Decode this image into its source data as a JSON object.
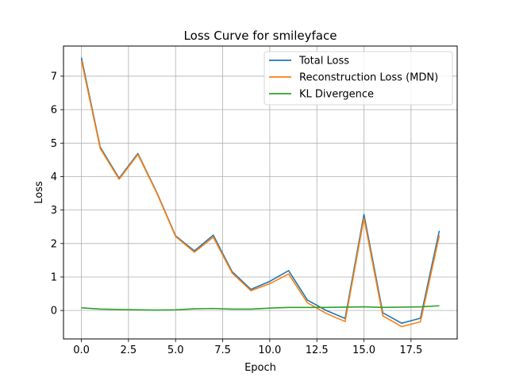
{
  "chart_data": {
    "type": "line",
    "title": "Loss Curve for smileyface",
    "xlabel": "Epoch",
    "ylabel": "Loss",
    "xlim": [
      -0.95,
      19.95
    ],
    "ylim": [
      -0.85,
      7.9
    ],
    "x_ticks": [
      0.0,
      2.5,
      5.0,
      7.5,
      10.0,
      12.5,
      15.0,
      17.5
    ],
    "x_tick_labels": [
      "0.0",
      "2.5",
      "5.0",
      "7.5",
      "10.0",
      "12.5",
      "15.0",
      "17.5"
    ],
    "y_ticks": [
      0,
      1,
      2,
      3,
      4,
      5,
      6,
      7
    ],
    "y_tick_labels": [
      "0",
      "1",
      "2",
      "3",
      "4",
      "5",
      "6",
      "7"
    ],
    "grid": true,
    "legend_position": "top-right",
    "x": [
      0,
      1,
      2,
      3,
      4,
      5,
      6,
      7,
      8,
      9,
      10,
      11,
      12,
      13,
      14,
      15,
      16,
      17,
      18,
      19
    ],
    "series": [
      {
        "name": "Total Loss",
        "color": "#1f77b4",
        "values": [
          7.55,
          4.88,
          3.95,
          4.69,
          3.53,
          2.23,
          1.78,
          2.25,
          1.16,
          0.63,
          0.87,
          1.19,
          0.31,
          0.0,
          -0.24,
          2.87,
          -0.07,
          -0.38,
          -0.23,
          2.38
        ]
      },
      {
        "name": "Reconstruction Loss (MDN)",
        "color": "#ff7f0e",
        "values": [
          7.47,
          4.84,
          3.92,
          4.66,
          3.51,
          2.21,
          1.74,
          2.19,
          1.12,
          0.59,
          0.8,
          1.09,
          0.23,
          -0.09,
          -0.33,
          2.76,
          -0.16,
          -0.48,
          -0.34,
          2.24
        ]
      },
      {
        "name": "KL Divergence",
        "color": "#2ca02c",
        "values": [
          0.08,
          0.04,
          0.03,
          0.02,
          0.01,
          0.02,
          0.05,
          0.06,
          0.04,
          0.04,
          0.07,
          0.09,
          0.09,
          0.09,
          0.1,
          0.11,
          0.09,
          0.1,
          0.11,
          0.14
        ]
      }
    ]
  }
}
